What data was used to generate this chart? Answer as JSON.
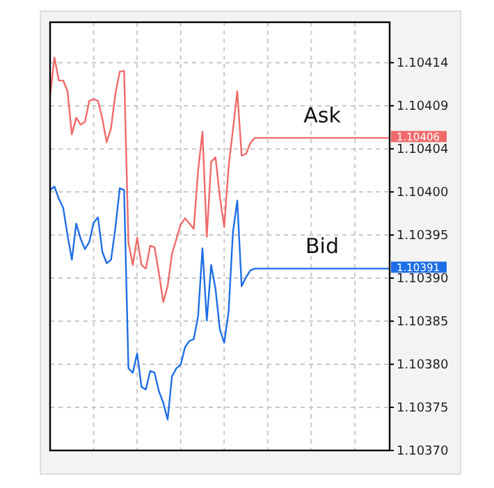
{
  "chart_data": {
    "type": "line",
    "categories": [
      null,
      null,
      null,
      null,
      null,
      null,
      null,
      null,
      null,
      null,
      null,
      null,
      null,
      null,
      null,
      null,
      null,
      null,
      null,
      null,
      null,
      null,
      null,
      null,
      null,
      null,
      null,
      null,
      null,
      null,
      null,
      null,
      null,
      null,
      null,
      null,
      null,
      null,
      null,
      null,
      null,
      null,
      null,
      null,
      null,
      null,
      null,
      null,
      null,
      null,
      null,
      null,
      null,
      null,
      null,
      null,
      null,
      null,
      null,
      null,
      null,
      null,
      null,
      null,
      null,
      null,
      null,
      null,
      null,
      null,
      null,
      null,
      null,
      null,
      null,
      null,
      null,
      null,
      null
    ],
    "ylim": [
      1.103703,
      1.104188
    ],
    "yticks": [
      {
        "value": 1.103703,
        "label": "1.10370"
      },
      {
        "value": 1.1037518,
        "label": "1.10375"
      },
      {
        "value": 1.1038006,
        "label": "1.10380"
      },
      {
        "value": 1.1038494,
        "label": "1.10385"
      },
      {
        "value": 1.1038982,
        "label": "1.10390"
      },
      {
        "value": 1.103947,
        "label": "1.10395"
      },
      {
        "value": 1.1039958,
        "label": "1.10400"
      },
      {
        "value": 1.1040446,
        "label": "1.10404"
      },
      {
        "value": 1.1040934,
        "label": "1.10409"
      },
      {
        "value": 1.1041422,
        "label": "1.10414"
      }
    ],
    "grid": true,
    "legend": false,
    "marker": "none",
    "line_style": "solid",
    "series": [
      {
        "name": "Ask",
        "color": "#f06a6a",
        "values": [
          1.104105,
          1.104148,
          1.104122,
          1.104122,
          1.10411,
          1.104061,
          1.10408,
          1.104072,
          1.104075,
          1.104099,
          1.104101,
          1.104099,
          1.104079,
          1.104052,
          1.104068,
          1.104107,
          1.104132,
          1.104133,
          1.103938,
          1.103913,
          1.103944,
          1.103913,
          1.103909,
          1.103935,
          1.103933,
          1.103904,
          1.103871,
          1.103889,
          1.103926,
          1.103942,
          1.103959,
          1.103966,
          1.10396,
          1.103954,
          1.10402,
          1.104064,
          1.103945,
          1.10403,
          1.104035,
          1.10399,
          1.103956,
          1.104024,
          1.104066,
          1.10411,
          1.104037,
          1.104039,
          1.104051,
          1.104057,
          1.104057,
          1.104057,
          1.104057,
          1.104057,
          1.104057,
          1.104057,
          1.104057,
          1.104057,
          1.104057,
          1.104057,
          1.104057,
          1.104057,
          1.104057,
          1.104057,
          1.104057,
          1.104057,
          1.104057,
          1.104057,
          1.104057,
          1.104057,
          1.104057,
          1.104057,
          1.104057,
          1.104057,
          1.104057,
          1.104057,
          1.104057,
          1.104057,
          1.104057,
          1.104057,
          1.104057
        ]
      },
      {
        "name": "Bid",
        "color": "#1e6ee6",
        "values": [
          1.103998,
          1.104002,
          1.103988,
          1.103978,
          1.103947,
          1.103919,
          1.10396,
          1.103943,
          1.103931,
          1.103939,
          1.103961,
          1.103967,
          1.103928,
          1.103915,
          1.103919,
          1.103955,
          1.104,
          1.103998,
          1.103796,
          1.103791,
          1.103813,
          1.103775,
          1.103772,
          1.103793,
          1.103791,
          1.10377,
          1.103757,
          1.103738,
          1.103787,
          1.103796,
          1.1038,
          1.10382,
          1.103827,
          1.103829,
          1.103855,
          1.103932,
          1.10385,
          1.103913,
          1.103886,
          1.10384,
          1.103825,
          1.10386,
          1.10395,
          1.103986,
          1.103889,
          1.103899,
          1.103907,
          1.103909,
          1.103909,
          1.103909,
          1.103909,
          1.103909,
          1.103909,
          1.103909,
          1.103909,
          1.103909,
          1.103909,
          1.103909,
          1.103909,
          1.103909,
          1.103909,
          1.103909,
          1.103909,
          1.103909,
          1.103909,
          1.103909,
          1.103909,
          1.103909,
          1.103909,
          1.103909,
          1.103909,
          1.103909,
          1.103909,
          1.103909,
          1.103909,
          1.103909,
          1.103909,
          1.103909,
          1.103909
        ]
      }
    ],
    "annotations": [
      "1.10406",
      "1.10391"
    ]
  }
}
